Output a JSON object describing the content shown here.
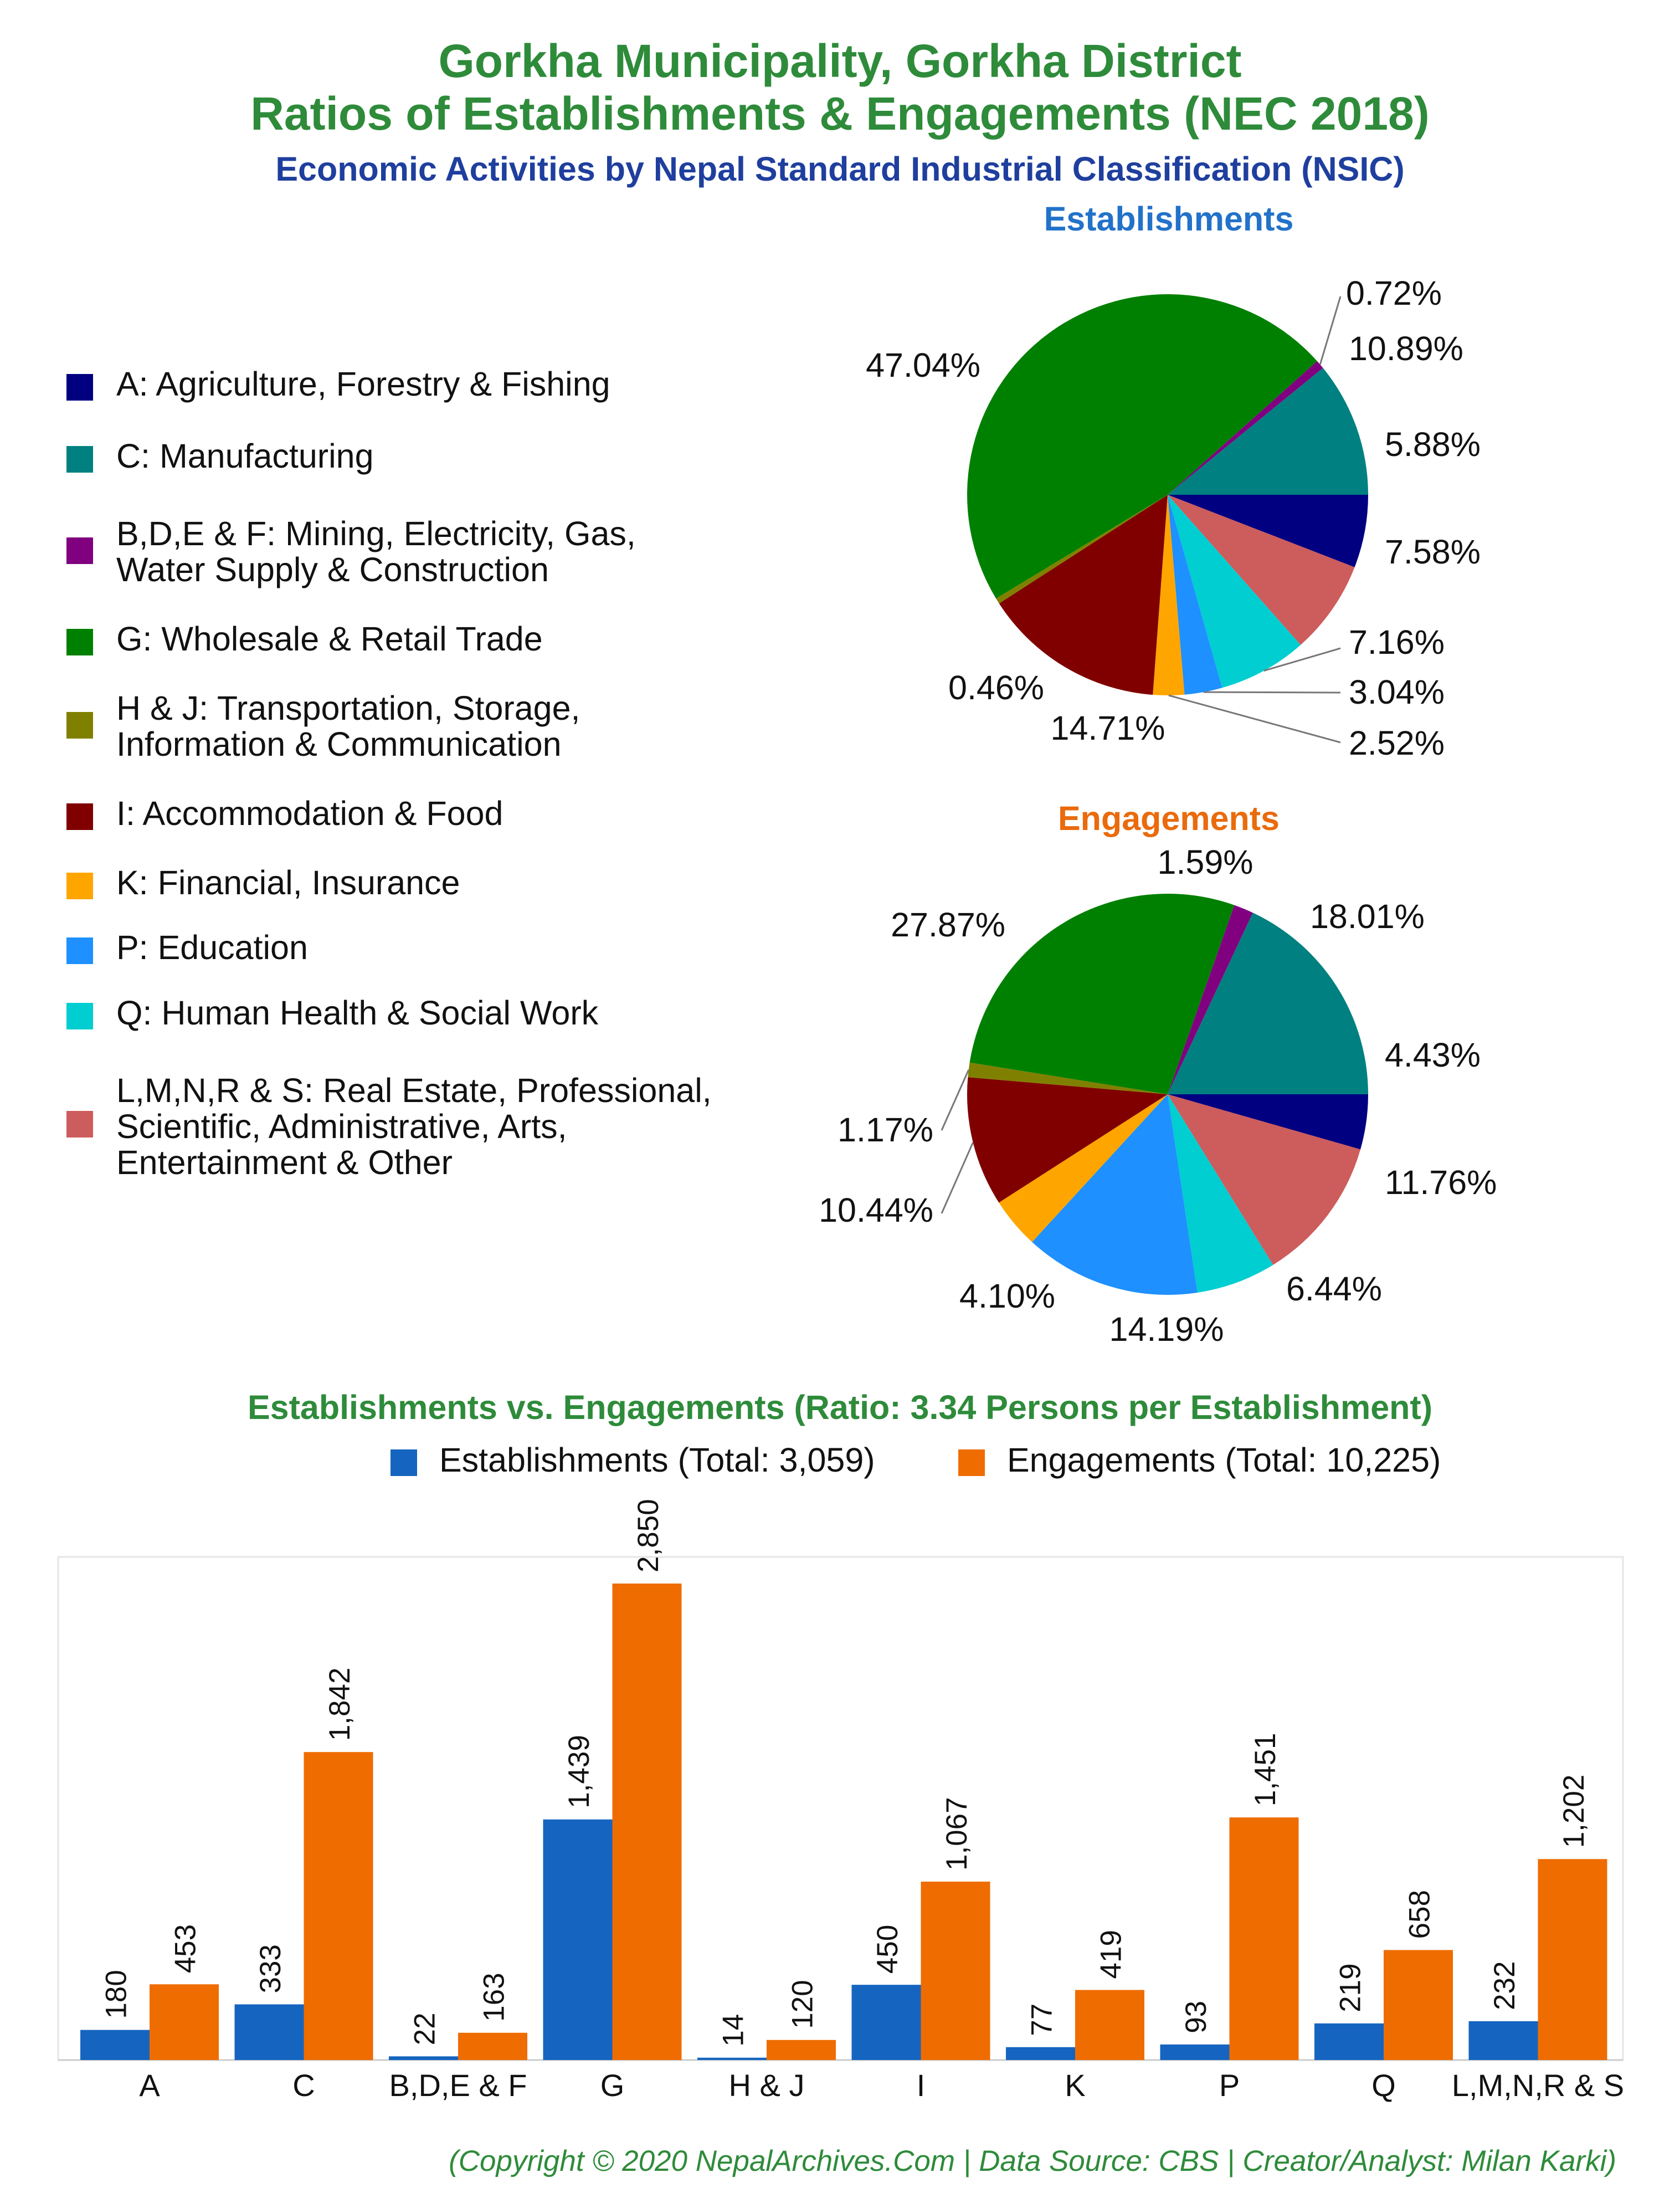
{
  "header": {
    "title_line1": "Gorkha Municipality, Gorkha District",
    "title_line2": "Ratios of Establishments & Engagements (NEC 2018)",
    "subtitle": "Economic Activities by Nepal Standard Industrial Classification (NSIC)"
  },
  "legend": [
    {
      "line1": "A: Agriculture, Forestry & Fishing",
      "line2": "",
      "color": "#000080"
    },
    {
      "line1": "C: Manufacturing",
      "line2": "",
      "color": "#008080"
    },
    {
      "line1": "B,D,E & F: Mining, Electricity, Gas,",
      "line2": "Water Supply & Construction",
      "color": "#800080"
    },
    {
      "line1": "G: Wholesale & Retail Trade",
      "line2": "",
      "color": "#008000"
    },
    {
      "line1": "H & J: Transportation, Storage,",
      "line2": "Information & Communication",
      "color": "#808000"
    },
    {
      "line1": "I: Accommodation & Food",
      "line2": "",
      "color": "#800000"
    },
    {
      "line1": "K: Financial, Insurance",
      "line2": "",
      "color": "#FFA500"
    },
    {
      "line1": "P: Education",
      "line2": "",
      "color": "#1E90FF"
    },
    {
      "line1": "Q: Human Health & Social Work",
      "line2": "",
      "color": "#00CED1"
    },
    {
      "line1": "L,M,N,R & S: Real Estate, Professional,",
      "line2": "Scientific, Administrative, Arts,",
      "line3": "Entertainment & Other",
      "color": "#CD5C5C"
    }
  ],
  "bar_legend": {
    "establishments": "Establishments (Total: 3,059)",
    "engagements": "Engagements (Total: 10,225)"
  },
  "copyright": "(Copyright © 2020 NepalArchives.Com | Data Source: CBS | Creator/Analyst: Milan Karki)",
  "chart_data": [
    {
      "type": "pie",
      "title": "Establishments",
      "slices": [
        {
          "key": "A",
          "value": 5.88,
          "label": "5.88%",
          "color": "#000080"
        },
        {
          "key": "L,M,N,R & S",
          "value": 7.58,
          "label": "7.58%",
          "color": "#CD5C5C"
        },
        {
          "key": "Q",
          "value": 7.16,
          "label": "7.16%",
          "color": "#00CED1"
        },
        {
          "key": "P",
          "value": 3.04,
          "label": "3.04%",
          "color": "#1E90FF"
        },
        {
          "key": "K",
          "value": 2.52,
          "label": "2.52%",
          "color": "#FFA500"
        },
        {
          "key": "I",
          "value": 14.71,
          "label": "14.71%",
          "color": "#800000"
        },
        {
          "key": "H & J",
          "value": 0.46,
          "label": "0.46%",
          "color": "#808000"
        },
        {
          "key": "G",
          "value": 47.04,
          "label": "47.04%",
          "color": "#008000"
        },
        {
          "key": "B,D,E & F",
          "value": 0.72,
          "label": "0.72%",
          "color": "#800080"
        },
        {
          "key": "C",
          "value": 10.89,
          "label": "10.89%",
          "color": "#008080"
        }
      ]
    },
    {
      "type": "pie",
      "title": "Engagements",
      "slices": [
        {
          "key": "A",
          "value": 4.43,
          "label": "4.43%",
          "color": "#000080"
        },
        {
          "key": "L,M,N,R & S",
          "value": 11.76,
          "label": "11.76%",
          "color": "#CD5C5C"
        },
        {
          "key": "Q",
          "value": 6.44,
          "label": "6.44%",
          "color": "#00CED1"
        },
        {
          "key": "P",
          "value": 14.19,
          "label": "14.19%",
          "color": "#1E90FF"
        },
        {
          "key": "K",
          "value": 4.1,
          "label": "4.10%",
          "color": "#FFA500"
        },
        {
          "key": "I",
          "value": 10.44,
          "label": "10.44%",
          "color": "#800000"
        },
        {
          "key": "H & J",
          "value": 1.17,
          "label": "1.17%",
          "color": "#808000"
        },
        {
          "key": "G",
          "value": 27.87,
          "label": "27.87%",
          "color": "#008000"
        },
        {
          "key": "B,D,E & F",
          "value": 1.59,
          "label": "1.59%",
          "color": "#800080"
        },
        {
          "key": "C",
          "value": 18.01,
          "label": "18.01%",
          "color": "#008080"
        }
      ]
    },
    {
      "type": "bar",
      "title": "Establishments vs. Engagements (Ratio: 3.34 Persons per Establishment)",
      "categories": [
        "A",
        "C",
        "B,D,E & F",
        "G",
        "H & J",
        "I",
        "K",
        "P",
        "Q",
        "L,M,N,R & S"
      ],
      "series": [
        {
          "name": "Establishments (Total: 3,059)",
          "color": "#1565C0",
          "values": [
            180,
            333,
            22,
            1439,
            14,
            450,
            77,
            93,
            219,
            232
          ],
          "labels": [
            "180",
            "333",
            "22",
            "1,439",
            "14",
            "450",
            "77",
            "93",
            "219",
            "232"
          ]
        },
        {
          "name": "Engagements (Total: 10,225)",
          "color": "#EF6C00",
          "values": [
            453,
            1842,
            163,
            2850,
            120,
            1067,
            419,
            1451,
            658,
            1202
          ],
          "labels": [
            "453",
            "1,842",
            "163",
            "2,850",
            "120",
            "1,067",
            "419",
            "1,451",
            "658",
            "1,202"
          ]
        }
      ],
      "ylim": [
        0,
        2850
      ]
    }
  ]
}
